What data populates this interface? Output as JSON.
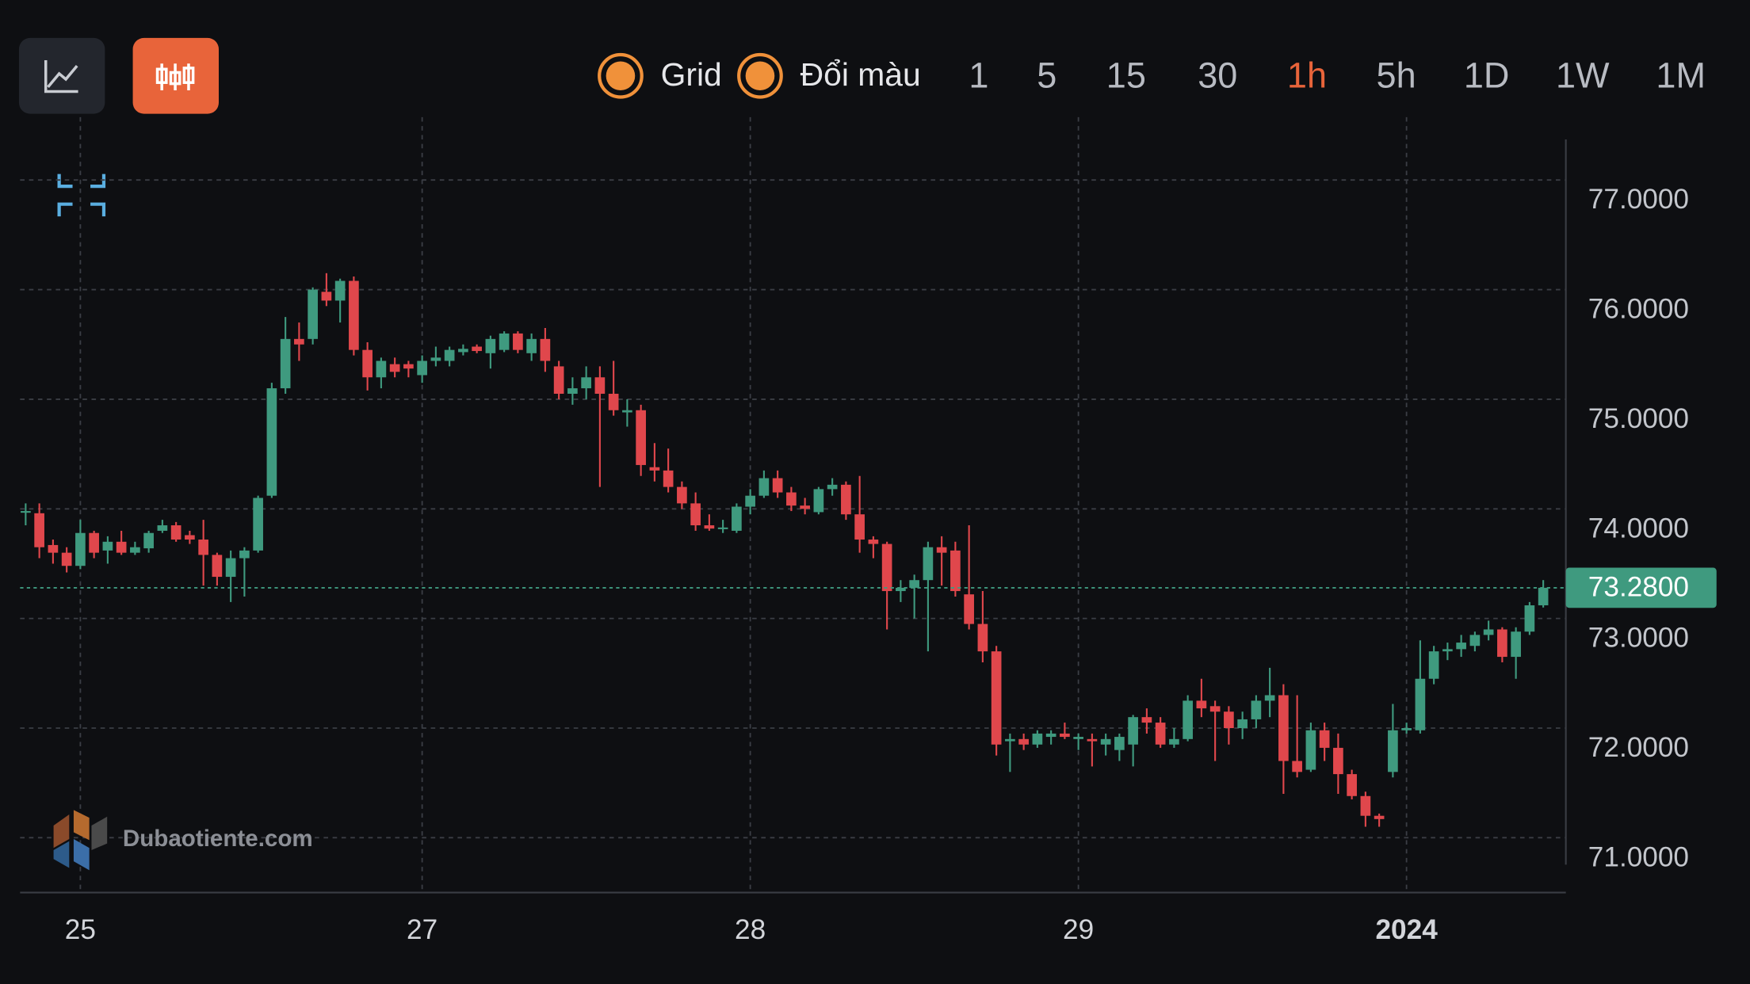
{
  "toolbar": {
    "toggles": [
      "Grid",
      "Đổi màu"
    ],
    "intervals": [
      "1",
      "5",
      "15",
      "30",
      "1h",
      "5h",
      "1D",
      "1W",
      "1M"
    ],
    "active_interval": 4
  },
  "watermark": "Dubaotiente.com",
  "chart_data": {
    "type": "candlestick",
    "up_color": "#3f9a7f",
    "down_color": "#e0474c",
    "grid": true,
    "ylim": [
      70.5,
      77.37
    ],
    "yticks": [
      {
        "value": 71,
        "label": "71.0000"
      },
      {
        "value": 72,
        "label": "72.0000"
      },
      {
        "value": 73,
        "label": "73.0000"
      },
      {
        "value": 74,
        "label": "74.0000"
      },
      {
        "value": 75,
        "label": "75.0000"
      },
      {
        "value": 76,
        "label": "76.0000"
      },
      {
        "value": 77,
        "label": "77.0000"
      }
    ],
    "last_price": {
      "value": 73.28,
      "label": "73.2800"
    },
    "categories": [
      null,
      null,
      null,
      null,
      "25",
      null,
      null,
      null,
      null,
      null,
      null,
      null,
      null,
      null,
      null,
      null,
      null,
      null,
      null,
      null,
      null,
      null,
      null,
      null,
      null,
      null,
      null,
      null,
      null,
      "27",
      null,
      null,
      null,
      null,
      null,
      null,
      null,
      null,
      null,
      null,
      null,
      null,
      null,
      null,
      null,
      null,
      null,
      null,
      null,
      null,
      null,
      null,
      null,
      "28",
      null,
      null,
      null,
      null,
      null,
      null,
      null,
      null,
      null,
      null,
      null,
      null,
      null,
      null,
      null,
      null,
      null,
      null,
      null,
      null,
      null,
      null,
      null,
      "29",
      null,
      null,
      null,
      null,
      null,
      null,
      null,
      null,
      null,
      null,
      null,
      null,
      null,
      null,
      null,
      null,
      null,
      null,
      null,
      null,
      null,
      null,
      null,
      "2024",
      null,
      null,
      null,
      null,
      null,
      null,
      null,
      null,
      null,
      null,
      null
    ],
    "candles": [
      {
        "open": 73.98,
        "high": 74.05,
        "low": 73.85,
        "close": 73.98
      },
      {
        "open": 73.96,
        "high": 74.05,
        "low": 73.55,
        "close": 73.65
      },
      {
        "open": 73.67,
        "high": 73.72,
        "low": 73.5,
        "close": 73.6
      },
      {
        "open": 73.6,
        "high": 73.65,
        "low": 73.42,
        "close": 73.48
      },
      {
        "open": 73.48,
        "high": 73.9,
        "low": 73.45,
        "close": 73.78
      },
      {
        "open": 73.78,
        "high": 73.8,
        "low": 73.55,
        "close": 73.6
      },
      {
        "open": 73.62,
        "high": 73.75,
        "low": 73.5,
        "close": 73.7
      },
      {
        "open": 73.7,
        "high": 73.8,
        "low": 73.58,
        "close": 73.6
      },
      {
        "open": 73.6,
        "high": 73.7,
        "low": 73.58,
        "close": 73.65
      },
      {
        "open": 73.64,
        "high": 73.8,
        "low": 73.6,
        "close": 73.78
      },
      {
        "open": 73.8,
        "high": 73.9,
        "low": 73.78,
        "close": 73.85
      },
      {
        "open": 73.85,
        "high": 73.88,
        "low": 73.7,
        "close": 73.72
      },
      {
        "open": 73.76,
        "high": 73.8,
        "low": 73.68,
        "close": 73.72
      },
      {
        "open": 73.72,
        "high": 73.9,
        "low": 73.3,
        "close": 73.58
      },
      {
        "open": 73.58,
        "high": 73.6,
        "low": 73.3,
        "close": 73.38
      },
      {
        "open": 73.38,
        "high": 73.62,
        "low": 73.15,
        "close": 73.55
      },
      {
        "open": 73.55,
        "high": 73.65,
        "low": 73.2,
        "close": 73.62
      },
      {
        "open": 73.62,
        "high": 74.12,
        "low": 73.6,
        "close": 74.1
      },
      {
        "open": 74.12,
        "high": 75.15,
        "low": 74.1,
        "close": 75.1
      },
      {
        "open": 75.1,
        "high": 75.75,
        "low": 75.05,
        "close": 75.55
      },
      {
        "open": 75.55,
        "high": 75.7,
        "low": 75.35,
        "close": 75.5
      },
      {
        "open": 75.55,
        "high": 76.02,
        "low": 75.5,
        "close": 76.0
      },
      {
        "open": 75.98,
        "high": 76.15,
        "low": 75.85,
        "close": 75.9
      },
      {
        "open": 75.9,
        "high": 76.1,
        "low": 75.7,
        "close": 76.08
      },
      {
        "open": 76.08,
        "high": 76.12,
        "low": 75.4,
        "close": 75.45
      },
      {
        "open": 75.45,
        "high": 75.52,
        "low": 75.08,
        "close": 75.2
      },
      {
        "open": 75.2,
        "high": 75.38,
        "low": 75.1,
        "close": 75.35
      },
      {
        "open": 75.32,
        "high": 75.38,
        "low": 75.2,
        "close": 75.25
      },
      {
        "open": 75.32,
        "high": 75.35,
        "low": 75.2,
        "close": 75.28
      },
      {
        "open": 75.22,
        "high": 75.4,
        "low": 75.15,
        "close": 75.35
      },
      {
        "open": 75.35,
        "high": 75.48,
        "low": 75.3,
        "close": 75.38
      },
      {
        "open": 75.35,
        "high": 75.48,
        "low": 75.3,
        "close": 75.45
      },
      {
        "open": 75.43,
        "high": 75.5,
        "low": 75.4,
        "close": 75.46
      },
      {
        "open": 75.48,
        "high": 75.5,
        "low": 75.42,
        "close": 75.44
      },
      {
        "open": 75.42,
        "high": 75.58,
        "low": 75.28,
        "close": 75.55
      },
      {
        "open": 75.45,
        "high": 75.62,
        "low": 75.43,
        "close": 75.6
      },
      {
        "open": 75.6,
        "high": 75.62,
        "low": 75.42,
        "close": 75.45
      },
      {
        "open": 75.42,
        "high": 75.6,
        "low": 75.35,
        "close": 75.55
      },
      {
        "open": 75.55,
        "high": 75.65,
        "low": 75.25,
        "close": 75.35
      },
      {
        "open": 75.3,
        "high": 75.35,
        "low": 75.0,
        "close": 75.05
      },
      {
        "open": 75.05,
        "high": 75.2,
        "low": 74.95,
        "close": 75.1
      },
      {
        "open": 75.1,
        "high": 75.3,
        "low": 75.0,
        "close": 75.2
      },
      {
        "open": 75.2,
        "high": 75.3,
        "low": 74.2,
        "close": 75.05
      },
      {
        "open": 75.05,
        "high": 75.35,
        "low": 74.85,
        "close": 74.9
      },
      {
        "open": 74.88,
        "high": 75.0,
        "low": 74.75,
        "close": 74.9
      },
      {
        "open": 74.9,
        "high": 74.95,
        "low": 74.3,
        "close": 74.4
      },
      {
        "open": 74.38,
        "high": 74.6,
        "low": 74.25,
        "close": 74.35
      },
      {
        "open": 74.35,
        "high": 74.55,
        "low": 74.15,
        "close": 74.2
      },
      {
        "open": 74.2,
        "high": 74.25,
        "low": 74.0,
        "close": 74.05
      },
      {
        "open": 74.05,
        "high": 74.15,
        "low": 73.8,
        "close": 73.85
      },
      {
        "open": 73.85,
        "high": 73.95,
        "low": 73.8,
        "close": 73.82
      },
      {
        "open": 73.82,
        "high": 73.9,
        "low": 73.78,
        "close": 73.83
      },
      {
        "open": 73.8,
        "high": 74.05,
        "low": 73.78,
        "close": 74.02
      },
      {
        "open": 74.02,
        "high": 74.18,
        "low": 73.95,
        "close": 74.12
      },
      {
        "open": 74.12,
        "high": 74.35,
        "low": 74.1,
        "close": 74.28
      },
      {
        "open": 74.28,
        "high": 74.35,
        "low": 74.1,
        "close": 74.15
      },
      {
        "open": 74.15,
        "high": 74.2,
        "low": 73.98,
        "close": 74.03
      },
      {
        "open": 74.03,
        "high": 74.1,
        "low": 73.95,
        "close": 74.0
      },
      {
        "open": 73.97,
        "high": 74.2,
        "low": 73.95,
        "close": 74.18
      },
      {
        "open": 74.18,
        "high": 74.28,
        "low": 74.12,
        "close": 74.22
      },
      {
        "open": 74.22,
        "high": 74.25,
        "low": 73.9,
        "close": 73.95
      },
      {
        "open": 73.95,
        "high": 74.3,
        "low": 73.6,
        "close": 73.72
      },
      {
        "open": 73.72,
        "high": 73.75,
        "low": 73.55,
        "close": 73.68
      },
      {
        "open": 73.68,
        "high": 73.7,
        "low": 72.9,
        "close": 73.25
      },
      {
        "open": 73.25,
        "high": 73.35,
        "low": 73.15,
        "close": 73.28
      },
      {
        "open": 73.28,
        "high": 73.4,
        "low": 73.0,
        "close": 73.35
      },
      {
        "open": 73.35,
        "high": 73.7,
        "low": 72.7,
        "close": 73.65
      },
      {
        "open": 73.65,
        "high": 73.75,
        "low": 73.3,
        "close": 73.6
      },
      {
        "open": 73.62,
        "high": 73.7,
        "low": 73.2,
        "close": 73.25
      },
      {
        "open": 73.22,
        "high": 73.85,
        "low": 72.9,
        "close": 72.95
      },
      {
        "open": 72.95,
        "high": 73.25,
        "low": 72.6,
        "close": 72.7
      },
      {
        "open": 72.7,
        "high": 72.75,
        "low": 71.75,
        "close": 71.85
      },
      {
        "open": 71.88,
        "high": 71.95,
        "low": 71.6,
        "close": 71.9
      },
      {
        "open": 71.9,
        "high": 71.95,
        "low": 71.8,
        "close": 71.85
      },
      {
        "open": 71.85,
        "high": 71.98,
        "low": 71.82,
        "close": 71.95
      },
      {
        "open": 71.92,
        "high": 71.98,
        "low": 71.85,
        "close": 71.95
      },
      {
        "open": 71.95,
        "high": 72.05,
        "low": 71.9,
        "close": 71.92
      },
      {
        "open": 71.9,
        "high": 71.95,
        "low": 71.8,
        "close": 71.92
      },
      {
        "open": 71.9,
        "high": 71.95,
        "low": 71.65,
        "close": 71.88
      },
      {
        "open": 71.85,
        "high": 71.95,
        "low": 71.75,
        "close": 71.9
      },
      {
        "open": 71.8,
        "high": 71.95,
        "low": 71.7,
        "close": 71.92
      },
      {
        "open": 71.85,
        "high": 72.12,
        "low": 71.65,
        "close": 72.1
      },
      {
        "open": 72.1,
        "high": 72.18,
        "low": 71.95,
        "close": 72.05
      },
      {
        "open": 72.05,
        "high": 72.1,
        "low": 71.82,
        "close": 71.85
      },
      {
        "open": 71.85,
        "high": 72.0,
        "low": 71.82,
        "close": 71.9
      },
      {
        "open": 71.9,
        "high": 72.3,
        "low": 71.88,
        "close": 72.25
      },
      {
        "open": 72.25,
        "high": 72.45,
        "low": 72.1,
        "close": 72.18
      },
      {
        "open": 72.2,
        "high": 72.25,
        "low": 71.7,
        "close": 72.15
      },
      {
        "open": 72.15,
        "high": 72.2,
        "low": 71.85,
        "close": 72.0
      },
      {
        "open": 72.0,
        "high": 72.15,
        "low": 71.9,
        "close": 72.08
      },
      {
        "open": 72.08,
        "high": 72.3,
        "low": 72.0,
        "close": 72.25
      },
      {
        "open": 72.25,
        "high": 72.55,
        "low": 72.1,
        "close": 72.3
      },
      {
        "open": 72.3,
        "high": 72.4,
        "low": 71.4,
        "close": 71.7
      },
      {
        "open": 71.7,
        "high": 72.3,
        "low": 71.55,
        "close": 71.6
      },
      {
        "open": 71.62,
        "high": 72.05,
        "low": 71.6,
        "close": 71.98
      },
      {
        "open": 71.98,
        "high": 72.05,
        "low": 71.7,
        "close": 71.82
      },
      {
        "open": 71.82,
        "high": 71.95,
        "low": 71.4,
        "close": 71.58
      },
      {
        "open": 71.58,
        "high": 71.62,
        "low": 71.35,
        "close": 71.38
      },
      {
        "open": 71.38,
        "high": 71.42,
        "low": 71.1,
        "close": 71.2
      },
      {
        "open": 71.2,
        "high": 71.22,
        "low": 71.1,
        "close": 71.17
      },
      {
        "open": 71.6,
        "high": 72.22,
        "low": 71.55,
        "close": 71.98
      },
      {
        "open": 71.98,
        "high": 72.05,
        "low": 71.95,
        "close": 72.0
      },
      {
        "open": 71.98,
        "high": 72.8,
        "low": 71.95,
        "close": 72.45
      },
      {
        "open": 72.45,
        "high": 72.75,
        "low": 72.4,
        "close": 72.7
      },
      {
        "open": 72.7,
        "high": 72.78,
        "low": 72.62,
        "close": 72.72
      },
      {
        "open": 72.72,
        "high": 72.85,
        "low": 72.65,
        "close": 72.78
      },
      {
        "open": 72.75,
        "high": 72.88,
        "low": 72.7,
        "close": 72.85
      },
      {
        "open": 72.85,
        "high": 72.98,
        "low": 72.8,
        "close": 72.9
      },
      {
        "open": 72.9,
        "high": 72.92,
        "low": 72.6,
        "close": 72.65
      },
      {
        "open": 72.65,
        "high": 72.92,
        "low": 72.45,
        "close": 72.88
      },
      {
        "open": 72.88,
        "high": 73.15,
        "low": 72.85,
        "close": 73.12
      },
      {
        "open": 73.12,
        "high": 73.35,
        "low": 73.1,
        "close": 73.28
      }
    ]
  }
}
